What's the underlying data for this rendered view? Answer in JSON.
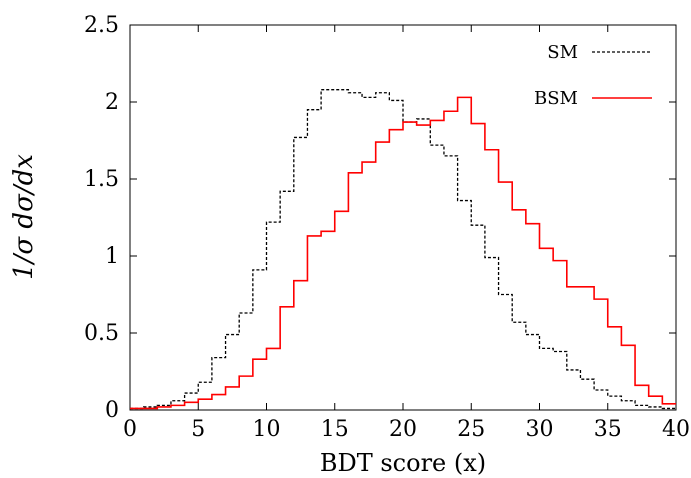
{
  "chart_data": {
    "type": "line",
    "xlabel": "BDT score (x)",
    "ylabel": "1/σ dσ/dx",
    "xlim": [
      0,
      40
    ],
    "ylim": [
      0,
      2.5
    ],
    "x_ticks": [
      0,
      5,
      10,
      15,
      20,
      25,
      30,
      35,
      40
    ],
    "y_ticks": [
      0,
      0.5,
      1,
      1.5,
      2,
      2.5
    ],
    "x_tick_labels": [
      "0",
      "5",
      "10",
      "15",
      "20",
      "25",
      "30",
      "35",
      "40"
    ],
    "y_tick_labels": [
      "0",
      "0.5",
      "1",
      "1.5",
      "2",
      "2.5"
    ],
    "grid": false,
    "legend_position": "top-right",
    "bin_edges": [
      0,
      1,
      2,
      3,
      4,
      5,
      6,
      7,
      8,
      9,
      10,
      11,
      12,
      13,
      14,
      15,
      16,
      17,
      18,
      19,
      20,
      21,
      22,
      23,
      24,
      25,
      26,
      27,
      28,
      29,
      30,
      31,
      32,
      33,
      34,
      35,
      36,
      37,
      38,
      39,
      40
    ],
    "series": [
      {
        "name": "SM",
        "color": "#000000",
        "style": "dashed",
        "values": [
          0.01,
          0.02,
          0.03,
          0.06,
          0.11,
          0.18,
          0.34,
          0.49,
          0.63,
          0.91,
          1.22,
          1.42,
          1.77,
          1.95,
          2.08,
          2.08,
          2.06,
          2.03,
          2.06,
          2.01,
          1.87,
          1.89,
          1.72,
          1.65,
          1.36,
          1.2,
          0.99,
          0.75,
          0.57,
          0.49,
          0.4,
          0.38,
          0.26,
          0.2,
          0.13,
          0.09,
          0.06,
          0.03,
          0.02,
          0.01
        ]
      },
      {
        "name": "BSM",
        "color": "#ff0000",
        "style": "solid",
        "values": [
          0.01,
          0.01,
          0.02,
          0.03,
          0.05,
          0.07,
          0.1,
          0.15,
          0.22,
          0.33,
          0.4,
          0.67,
          0.84,
          1.13,
          1.16,
          1.29,
          1.54,
          1.61,
          1.74,
          1.82,
          1.87,
          1.85,
          1.88,
          1.94,
          2.03,
          1.86,
          1.69,
          1.48,
          1.3,
          1.21,
          1.05,
          0.97,
          0.8,
          0.8,
          0.72,
          0.54,
          0.42,
          0.16,
          0.09,
          0.04
        ]
      }
    ]
  }
}
